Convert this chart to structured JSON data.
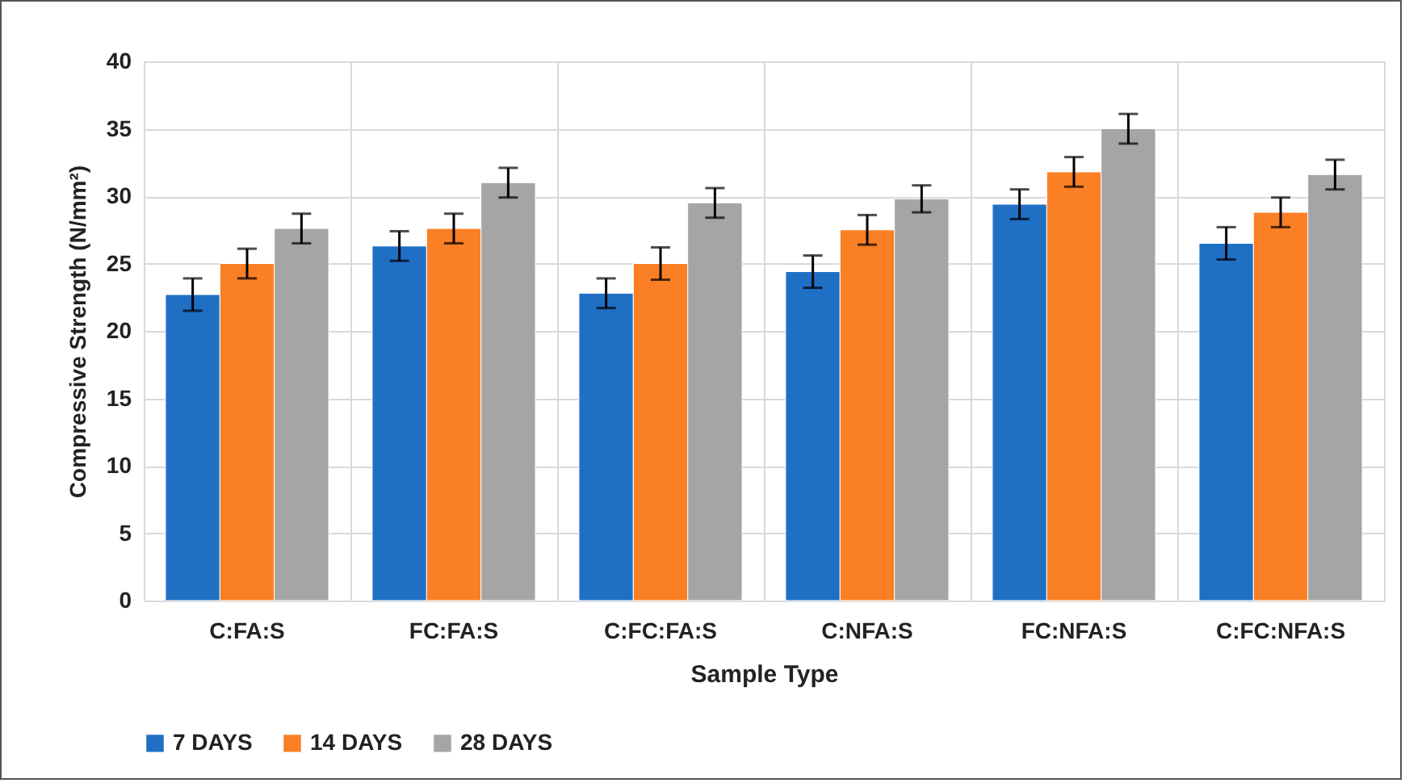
{
  "chart_data": {
    "type": "bar",
    "xlabel": "Sample Type",
    "ylabel": "Compressive Strength (N/mm²)",
    "categories": [
      "C:FA:S",
      "FC:FA:S",
      "C:FC:FA:S",
      "C:NFA:S",
      "FC:NFA:S",
      "C:FC:NFA:S"
    ],
    "series": [
      {
        "name": "7 DAYS",
        "color": "#1f6fc5",
        "values": [
          22.7,
          26.3,
          22.8,
          24.4,
          29.4,
          26.5
        ],
        "errors": [
          1.2,
          1.1,
          1.1,
          1.2,
          1.1,
          1.2
        ]
      },
      {
        "name": "14 DAYS",
        "color": "#fb7f25",
        "values": [
          25.0,
          27.6,
          25.0,
          27.5,
          31.8,
          28.8
        ],
        "errors": [
          1.1,
          1.1,
          1.2,
          1.1,
          1.1,
          1.1
        ]
      },
      {
        "name": "28 DAYS",
        "color": "#a5a5a5",
        "values": [
          27.6,
          31.0,
          29.5,
          29.8,
          35.0,
          31.6
        ],
        "errors": [
          1.1,
          1.1,
          1.1,
          1.0,
          1.1,
          1.1
        ]
      }
    ],
    "ylim": [
      0,
      40
    ],
    "yticks": [
      0,
      5,
      10,
      15,
      20,
      25,
      30,
      35,
      40
    ],
    "grid": true,
    "legend": "bottom"
  }
}
